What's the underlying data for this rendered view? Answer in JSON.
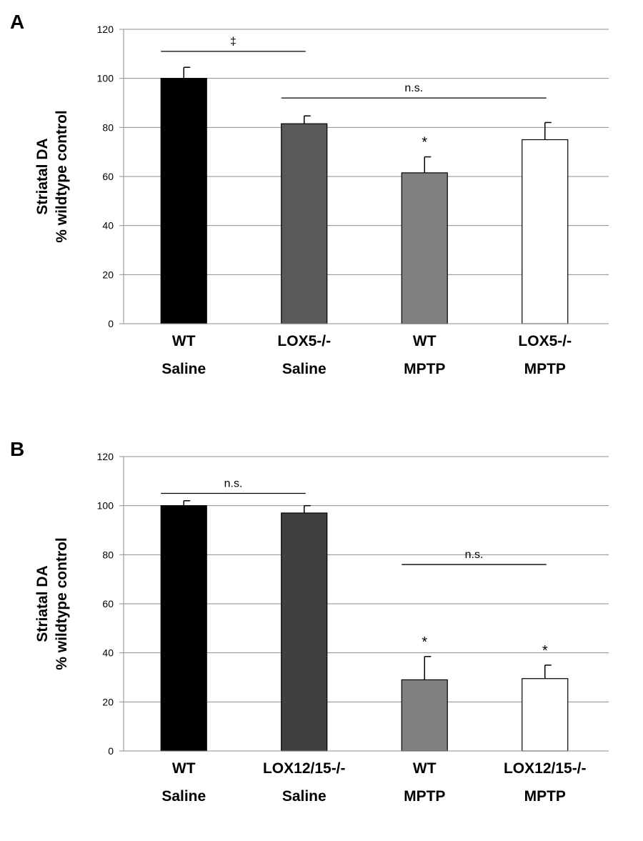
{
  "chart_data": [
    {
      "type": "bar",
      "panel": "A",
      "ylabel_line1": "Striatal DA",
      "ylabel_line2": "% wildtype control",
      "ylim": [
        0,
        120
      ],
      "yticks": [
        0,
        20,
        40,
        60,
        80,
        100,
        120
      ],
      "grid": true,
      "categories": [
        {
          "line1": "WT",
          "line2": "Saline"
        },
        {
          "line1": "LOX5-/-",
          "line2": "Saline"
        },
        {
          "line1": "WT",
          "line2": "MPTP"
        },
        {
          "line1": "LOX5-/-",
          "line2": "MPTP"
        }
      ],
      "values": [
        100,
        81.5,
        61.5,
        75
      ],
      "errors": [
        4.5,
        3.2,
        6.5,
        7
      ],
      "colors": [
        "#000000",
        "#595959",
        "#808080",
        "#ffffff"
      ],
      "markers": [
        "",
        "",
        "*",
        ""
      ],
      "brackets": [
        {
          "label": "‡",
          "from": 0,
          "to": 1,
          "y": 111
        },
        {
          "label": "n.s.",
          "from": 1,
          "to": 3,
          "y": 92
        }
      ]
    },
    {
      "type": "bar",
      "panel": "B",
      "ylabel_line1": "Striatal DA",
      "ylabel_line2": "% wildtype control",
      "ylim": [
        0,
        120
      ],
      "yticks": [
        0,
        20,
        40,
        60,
        80,
        100,
        120
      ],
      "grid": true,
      "categories": [
        {
          "line1": "WT",
          "line2": "Saline"
        },
        {
          "line1": "LOX12/15-/-",
          "line2": "Saline"
        },
        {
          "line1": "WT",
          "line2": "MPTP"
        },
        {
          "line1": "LOX12/15-/-",
          "line2": "MPTP"
        }
      ],
      "values": [
        100,
        97,
        29,
        29.5
      ],
      "errors": [
        2,
        3,
        9.5,
        5.5
      ],
      "colors": [
        "#000000",
        "#404040",
        "#808080",
        "#ffffff"
      ],
      "markers": [
        "",
        "",
        "*",
        "*"
      ],
      "brackets": [
        {
          "label": "n.s.",
          "from": 0,
          "to": 1,
          "y": 105
        },
        {
          "label": "n.s.",
          "from": 2,
          "to": 3,
          "y": 76
        }
      ]
    }
  ]
}
